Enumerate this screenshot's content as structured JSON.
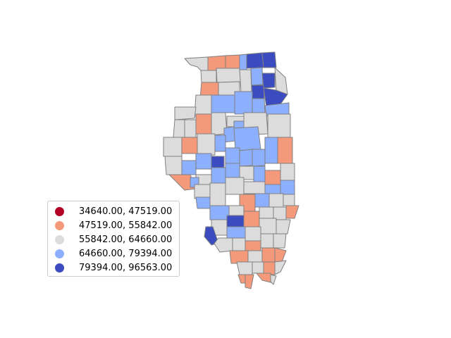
{
  "map": {
    "type": "choropleth",
    "region": "Illinois counties",
    "stroke_color": "#808080",
    "class_colors": [
      "#b40426",
      "#f49a7b",
      "#dddcdc",
      "#8db0fe",
      "#3b4cc0"
    ]
  },
  "legend": {
    "items": [
      {
        "label": "34640.00, 47519.00",
        "color": "#b40426"
      },
      {
        "label": "47519.00, 55842.00",
        "color": "#f49a7b"
      },
      {
        "label": "55842.00, 64660.00",
        "color": "#dddcdc"
      },
      {
        "label": "64660.00, 79394.00",
        "color": "#8db0fe"
      },
      {
        "label": "79394.00, 96563.00",
        "color": "#3b4cc0"
      }
    ]
  }
}
